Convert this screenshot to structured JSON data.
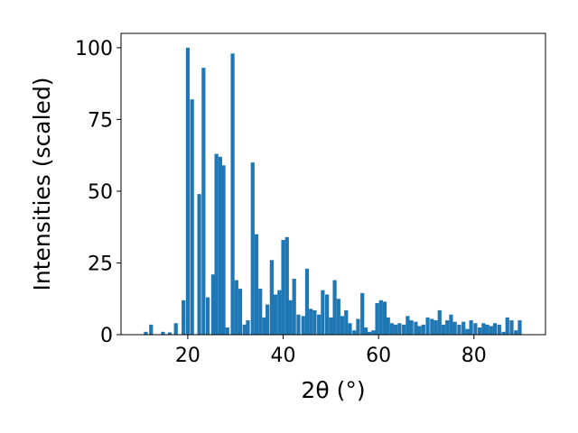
{
  "chart_data": {
    "type": "bar",
    "xlabel": "2θ (°)",
    "ylabel": "Intensities (scaled)",
    "xlim": [
      6,
      95
    ],
    "ylim": [
      0,
      105
    ],
    "xticks": [
      20,
      40,
      60,
      80
    ],
    "yticks": [
      0,
      25,
      50,
      75,
      100
    ],
    "bar_width": 0.8,
    "bar_color": "#1f77b4",
    "grid": false,
    "x": [
      11.2,
      12.3,
      14.8,
      16.2,
      17.5,
      19.1,
      20.0,
      20.9,
      22.4,
      23.3,
      24.2,
      25.3,
      26.0,
      26.8,
      27.5,
      28.3,
      29.4,
      30.2,
      31.0,
      31.9,
      32.6,
      33.6,
      34.4,
      35.2,
      36.0,
      36.7,
      37.6,
      38.4,
      39.2,
      40.0,
      40.8,
      41.5,
      42.3,
      43.2,
      44.2,
      45.0,
      45.8,
      46.6,
      47.5,
      48.3,
      49.2,
      50.0,
      50.8,
      51.6,
      52.4,
      53.2,
      54.0,
      54.9,
      55.7,
      56.6,
      57.3,
      58.1,
      58.9,
      59.7,
      60.5,
      61.3,
      62.0,
      62.8,
      63.6,
      64.4,
      65.3,
      66.1,
      66.9,
      67.8,
      68.6,
      69.4,
      70.3,
      71.2,
      72.0,
      72.8,
      73.6,
      74.4,
      75.2,
      76.0,
      76.9,
      77.8,
      78.6,
      79.4,
      80.3,
      81.2,
      82.0,
      82.8,
      83.6,
      84.4,
      85.3,
      86.2,
      87.0,
      87.9,
      88.8,
      89.6
    ],
    "values": [
      1,
      3.5,
      1,
      0.8,
      4,
      12,
      100,
      82,
      49,
      93,
      13,
      21,
      63,
      62,
      59,
      2.5,
      98,
      19,
      16,
      3.5,
      5,
      60,
      35,
      16,
      6,
      10.5,
      26,
      14,
      15.5,
      33,
      34,
      12,
      19.5,
      7,
      6.5,
      23,
      9,
      8.5,
      7,
      15.5,
      14,
      6,
      19,
      12.5,
      6.5,
      8.5,
      4,
      1.5,
      5.5,
      14.5,
      2.5,
      1,
      1.5,
      11,
      12,
      11.5,
      6,
      4,
      3.5,
      4,
      3.5,
      6.5,
      5,
      4.5,
      3,
      3.5,
      6,
      5.5,
      5,
      8.5,
      3.5,
      5,
      7,
      4.5,
      3.5,
      4.5,
      2,
      5,
      4,
      2.5,
      4,
      3.5,
      3,
      4,
      3.5,
      1,
      6,
      5,
      1.5,
      5
    ]
  }
}
